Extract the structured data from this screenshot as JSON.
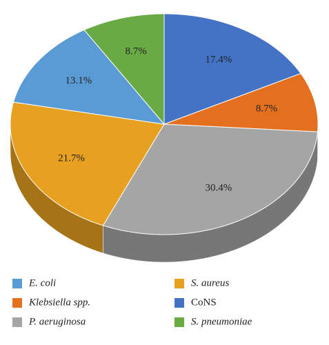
{
  "chart_data": {
    "type": "pie",
    "categories": [
      "CoNS",
      "Klebsiella spp.",
      "P. aeruginosa",
      "S. aureus",
      "E. coli",
      "S. pneumoniae"
    ],
    "values": [
      17.4,
      8.7,
      30.4,
      21.7,
      13.1,
      8.7
    ],
    "value_labels": [
      "17.4%",
      "8.7%",
      "30.4%",
      "21.7%",
      "13.1%",
      "8.7%"
    ],
    "colors": [
      "#4472c4",
      "#e2701f",
      "#a5a5a5",
      "#e8a020",
      "#5b9bd5",
      "#6aaa45"
    ],
    "legend": "bottom"
  }
}
